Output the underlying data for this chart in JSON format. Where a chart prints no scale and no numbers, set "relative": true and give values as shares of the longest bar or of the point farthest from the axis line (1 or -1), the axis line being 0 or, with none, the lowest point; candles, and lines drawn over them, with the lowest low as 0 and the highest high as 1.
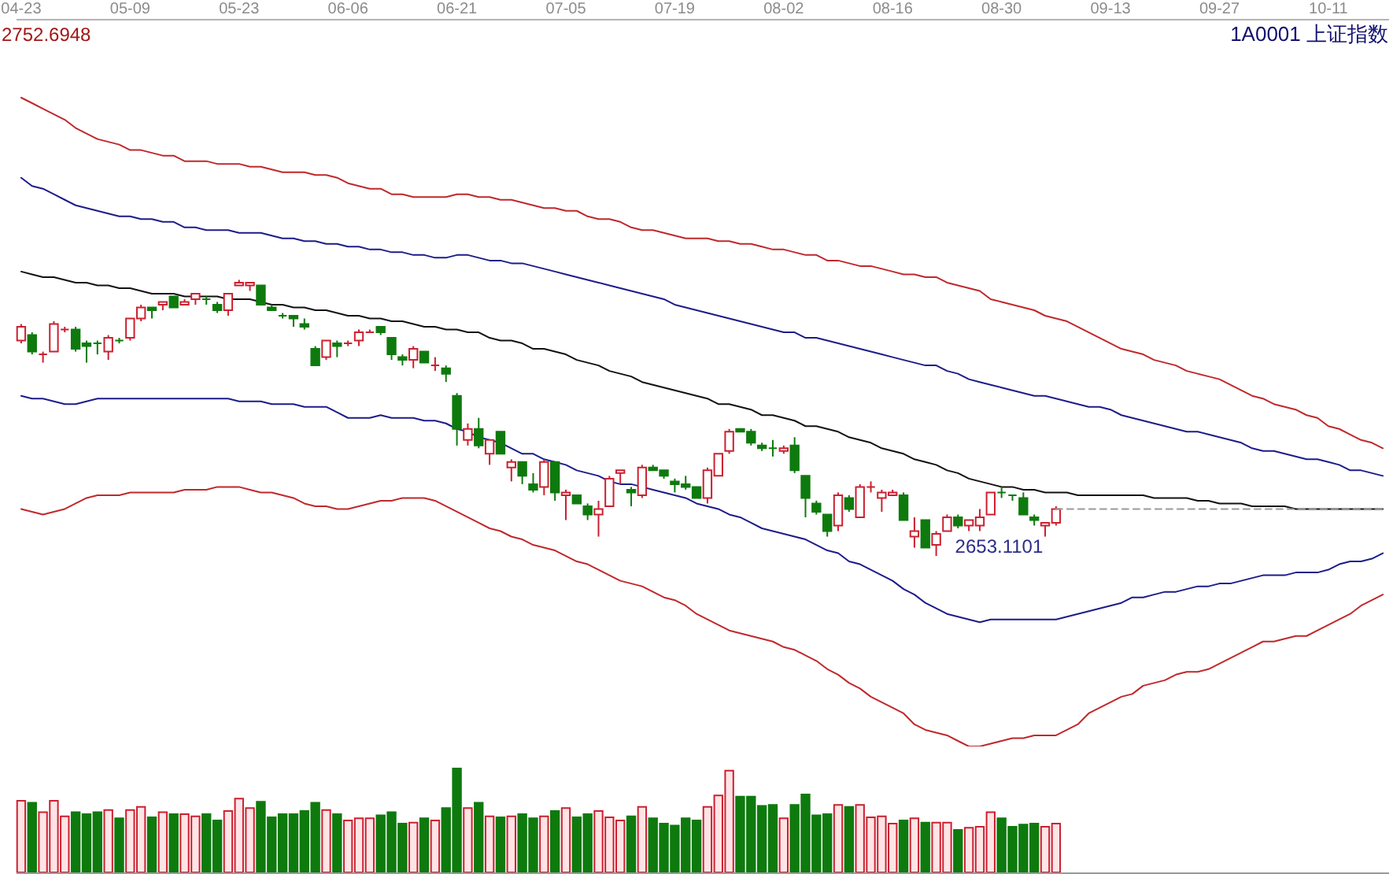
{
  "chart_data": [
    {
      "type": "candlestick",
      "title": "1A0001 上证指数",
      "relative": true,
      "categories": [
        "04-23",
        null,
        null,
        null,
        null,
        null,
        null,
        null,
        null,
        null,
        "05-09",
        null,
        null,
        null,
        null,
        null,
        null,
        null,
        null,
        null,
        "05-23",
        null,
        null,
        null,
        null,
        null,
        null,
        null,
        null,
        null,
        "06-06",
        null,
        null,
        null,
        null,
        null,
        null,
        null,
        null,
        null,
        "06-21",
        null,
        null,
        null,
        null,
        null,
        null,
        null,
        null,
        null,
        "07-05",
        null,
        null,
        null,
        null,
        null,
        null,
        null,
        null,
        null,
        "07-19",
        null,
        null,
        null,
        null,
        null,
        null,
        null,
        null,
        null,
        "08-02",
        null,
        null,
        null,
        null,
        null,
        null,
        null,
        null,
        null,
        "08-16",
        null,
        null,
        null,
        null,
        null,
        null,
        null,
        null,
        null,
        "08-30",
        null,
        null,
        null,
        null,
        null,
        null,
        null,
        null,
        null,
        "09-13",
        null,
        null,
        null,
        null,
        null,
        null,
        null,
        null,
        null,
        "09-27",
        null,
        null,
        null,
        null,
        null,
        null,
        null,
        null,
        null,
        "10-11",
        null,
        null,
        null,
        null,
        null
      ],
      "ohlc": [
        [
          0.78,
          0.84,
          0.77,
          0.83
        ],
        [
          0.8,
          0.81,
          0.73,
          0.74
        ],
        [
          0.73,
          0.74,
          0.7,
          0.73
        ],
        [
          0.74,
          0.85,
          0.74,
          0.84
        ],
        [
          0.82,
          0.83,
          0.81,
          0.82
        ],
        [
          0.82,
          0.83,
          0.74,
          0.75
        ],
        [
          0.77,
          0.78,
          0.7,
          0.76
        ],
        [
          0.77,
          0.78,
          0.73,
          0.77
        ],
        [
          0.74,
          0.8,
          0.71,
          0.79
        ],
        [
          0.78,
          0.79,
          0.77,
          0.78
        ],
        [
          0.79,
          0.86,
          0.78,
          0.86
        ],
        [
          0.86,
          0.91,
          0.85,
          0.9
        ],
        [
          0.9,
          0.9,
          0.86,
          0.89
        ],
        [
          0.91,
          0.92,
          0.89,
          0.92
        ],
        [
          0.94,
          0.94,
          0.9,
          0.9
        ],
        [
          0.91,
          0.93,
          0.91,
          0.92
        ],
        [
          0.93,
          0.95,
          0.91,
          0.95
        ],
        [
          0.93,
          0.94,
          0.91,
          0.93
        ],
        [
          0.91,
          0.92,
          0.88,
          0.89
        ],
        [
          0.89,
          0.95,
          0.87,
          0.95
        ],
        [
          0.98,
          1,
          0.98,
          0.99
        ],
        [
          0.98,
          0.99,
          0.96,
          0.99
        ],
        [
          0.98,
          0.98,
          0.91,
          0.91
        ],
        [
          0.9,
          0.91,
          0.89,
          0.89
        ],
        [
          0.87,
          0.88,
          0.86,
          0.87
        ],
        [
          0.87,
          0.87,
          0.83,
          0.86
        ],
        [
          0.84,
          0.86,
          0.82,
          0.83
        ],
        [
          0.75,
          0.76,
          0.69,
          0.69
        ],
        [
          0.72,
          0.78,
          0.71,
          0.78
        ],
        [
          0.77,
          0.78,
          0.72,
          0.76
        ],
        [
          0.77,
          0.78,
          0.76,
          0.77
        ],
        [
          0.78,
          0.82,
          0.76,
          0.81
        ],
        [
          0.81,
          0.82,
          0.81,
          0.81
        ],
        [
          0.83,
          0.83,
          0.8,
          0.81
        ],
        [
          0.79,
          0.79,
          0.71,
          0.73
        ],
        [
          0.72,
          0.73,
          0.69,
          0.71
        ],
        [
          0.71,
          0.76,
          0.68,
          0.75
        ],
        [
          0.74,
          0.74,
          0.7,
          0.7
        ],
        [
          0.69,
          0.72,
          0.67,
          0.69
        ],
        [
          0.68,
          0.69,
          0.63,
          0.66
        ],
        [
          0.58,
          0.59,
          0.4,
          0.46
        ],
        [
          0.42,
          0.48,
          0.4,
          0.46
        ],
        [
          0.46,
          0.5,
          0.39,
          0.4
        ],
        [
          0.37,
          0.42,
          0.33,
          0.42
        ],
        [
          0.45,
          0.45,
          0.37,
          0.37
        ],
        [
          0.32,
          0.35,
          0.27,
          0.34
        ],
        [
          0.34,
          0.34,
          0.26,
          0.29
        ],
        [
          0.26,
          0.3,
          0.23,
          0.24
        ],
        [
          0.25,
          0.35,
          0.22,
          0.34
        ],
        [
          0.34,
          0.34,
          0.2,
          0.23
        ],
        [
          0.22,
          0.24,
          0.13,
          0.23
        ],
        [
          0.22,
          0.22,
          0.19,
          0.19
        ],
        [
          0.18,
          0.19,
          0.13,
          0.15
        ],
        [
          0.15,
          0.2,
          0.07,
          0.17
        ],
        [
          0.18,
          0.29,
          0.18,
          0.28
        ],
        [
          0.3,
          0.31,
          0.26,
          0.31
        ],
        [
          0.24,
          0.25,
          0.18,
          0.23
        ],
        [
          0.22,
          0.33,
          0.21,
          0.32
        ],
        [
          0.32,
          0.33,
          0.31,
          0.31
        ],
        [
          0.31,
          0.31,
          0.28,
          0.29
        ],
        [
          0.27,
          0.28,
          0.23,
          0.26
        ],
        [
          0.26,
          0.29,
          0.24,
          0.25
        ],
        [
          0.25,
          0.25,
          0.21,
          0.21
        ],
        [
          0.21,
          0.32,
          0.19,
          0.31
        ],
        [
          0.29,
          0.37,
          0.29,
          0.37
        ],
        [
          0.38,
          0.46,
          0.37,
          0.45
        ],
        [
          0.46,
          0.46,
          0.45,
          0.45
        ],
        [
          0.45,
          0.46,
          0.4,
          0.41
        ],
        [
          0.4,
          0.41,
          0.38,
          0.39
        ],
        [
          0.39,
          0.42,
          0.36,
          0.39
        ],
        [
          0.38,
          0.4,
          0.37,
          0.39
        ],
        [
          0.4,
          0.43,
          0.3,
          0.31
        ],
        [
          0.29,
          0.29,
          0.14,
          0.21
        ],
        [
          0.19,
          0.2,
          0.15,
          0.16
        ],
        [
          0.15,
          0.15,
          0.07,
          0.09
        ],
        [
          0.11,
          0.23,
          0.09,
          0.22
        ],
        [
          0.21,
          0.22,
          0.16,
          0.17
        ],
        [
          0.14,
          0.26,
          0.14,
          0.25
        ],
        [
          0.25,
          0.27,
          0.23,
          0.25
        ],
        [
          0.21,
          0.24,
          0.16,
          0.23
        ],
        [
          0.22,
          0.24,
          0.22,
          0.23
        ],
        [
          0.22,
          0.23,
          0.13,
          0.13
        ],
        [
          0.07,
          0.14,
          0.03,
          0.09
        ],
        [
          0.13,
          0.13,
          0.03,
          0.03
        ],
        [
          0.04,
          0.09,
          0,
          0.08
        ],
        [
          0.09,
          0.15,
          0.09,
          0.14
        ],
        [
          0.14,
          0.15,
          0.1,
          0.11
        ],
        [
          0.11,
          0.13,
          0.09,
          0.13
        ],
        [
          0.11,
          0.17,
          0.09,
          0.14
        ],
        [
          0.15,
          0.23,
          0.15,
          0.23
        ],
        [
          0.23,
          0.25,
          0.21,
          0.23
        ],
        [
          0.22,
          0.22,
          0.2,
          0.22
        ],
        [
          0.21,
          0.23,
          0.15,
          0.15
        ],
        [
          0.14,
          0.15,
          0.11,
          0.13
        ],
        [
          0.11,
          0.12,
          0.07,
          0.12
        ],
        [
          0.12,
          0.18,
          0.11,
          0.17
        ],
        null,
        null,
        null,
        null,
        null,
        null,
        null,
        null,
        null,
        null,
        null,
        null,
        null,
        null,
        null,
        null,
        null,
        null,
        null,
        null,
        null,
        null,
        null,
        null,
        null,
        null,
        null,
        null,
        null,
        null
      ],
      "colors": [
        "#cc2030",
        "#0e7a0e",
        "#cc2030",
        "#cc2030",
        "#cc2030",
        "#0e7a0e",
        "#0e7a0e",
        "#0e7a0e",
        "#cc2030",
        "#0e7a0e",
        "#cc2030",
        "#cc2030",
        "#0e7a0e",
        "#cc2030",
        "#0e7a0e",
        "#cc2030",
        "#cc2030",
        "#0e7a0e",
        "#0e7a0e",
        "#cc2030",
        "#cc2030",
        "#cc2030",
        "#0e7a0e",
        "#0e7a0e",
        "#0e7a0e",
        "#0e7a0e",
        "#0e7a0e",
        "#0e7a0e",
        "#cc2030",
        "#0e7a0e",
        "#cc2030",
        "#cc2030",
        "#cc2030",
        "#0e7a0e",
        "#0e7a0e",
        "#0e7a0e",
        "#cc2030",
        "#0e7a0e",
        "#cc2030",
        "#0e7a0e",
        "#0e7a0e",
        "#cc2030",
        "#0e7a0e",
        "#cc2030",
        "#0e7a0e",
        "#cc2030",
        "#0e7a0e",
        "#0e7a0e",
        "#cc2030",
        "#0e7a0e",
        "#cc2030",
        "#0e7a0e",
        "#0e7a0e",
        "#cc2030",
        "#cc2030",
        "#cc2030",
        "#0e7a0e",
        "#cc2030",
        "#0e7a0e",
        "#0e7a0e",
        "#0e7a0e",
        "#0e7a0e",
        "#0e7a0e",
        "#cc2030",
        "#cc2030",
        "#cc2030",
        "#0e7a0e",
        "#0e7a0e",
        "#0e7a0e",
        "#0e7a0e",
        "#cc2030",
        "#0e7a0e",
        "#0e7a0e",
        "#0e7a0e",
        "#0e7a0e",
        "#cc2030",
        "#0e7a0e",
        "#cc2030",
        "#cc2030",
        "#cc2030",
        "#cc2030",
        "#0e7a0e",
        "#cc2030",
        "#0e7a0e",
        "#cc2030",
        "#cc2030",
        "#0e7a0e",
        "#cc2030",
        "#cc2030",
        "#cc2030",
        "#0e7a0e",
        "#0e7a0e",
        "#0e7a0e",
        "#0e7a0e",
        "#cc2030",
        "#cc2030",
        null,
        null,
        null,
        null,
        null,
        null,
        null,
        null,
        null,
        null,
        null,
        null,
        null,
        null,
        null,
        null,
        null,
        null,
        null,
        null,
        null,
        null,
        null,
        null,
        null,
        null,
        null,
        null,
        null,
        null
      ],
      "series": [
        {
          "type": "line",
          "color": "#c0282c",
          "values": [
            1.66,
            1.64,
            1.62,
            1.6,
            1.58,
            1.55,
            1.53,
            1.51,
            1.5,
            1.49,
            1.47,
            1.47,
            1.46,
            1.45,
            1.45,
            1.43,
            1.43,
            1.43,
            1.42,
            1.42,
            1.42,
            1.41,
            1.41,
            1.4,
            1.39,
            1.39,
            1.39,
            1.38,
            1.38,
            1.37,
            1.35,
            1.34,
            1.33,
            1.33,
            1.31,
            1.31,
            1.3,
            1.3,
            1.3,
            1.3,
            1.31,
            1.31,
            1.3,
            1.3,
            1.29,
            1.29,
            1.28,
            1.27,
            1.26,
            1.26,
            1.25,
            1.25,
            1.23,
            1.22,
            1.22,
            1.21,
            1.19,
            1.18,
            1.18,
            1.17,
            1.16,
            1.15,
            1.15,
            1.15,
            1.14,
            1.14,
            1.13,
            1.13,
            1.12,
            1.11,
            1.11,
            1.1,
            1.09,
            1.09,
            1.07,
            1.07,
            1.06,
            1.05,
            1.05,
            1.04,
            1.03,
            1.02,
            1.02,
            1.01,
            1.01,
            0.99,
            0.98,
            0.97,
            0.96,
            0.93,
            0.92,
            0.91,
            0.9,
            0.89,
            0.87,
            0.86,
            0.85,
            0.83,
            0.81,
            0.79,
            0.77,
            0.75,
            0.74,
            0.73,
            0.71,
            0.7,
            0.69,
            0.67,
            0.66,
            0.65,
            0.64,
            0.62,
            0.6,
            0.58,
            0.57,
            0.55,
            0.54,
            0.53,
            0.51,
            0.5,
            0.47,
            0.46,
            0.44,
            0.42,
            0.41,
            0.39
          ]
        },
        {
          "type": "line",
          "color": "#1c1c8a",
          "values": [
            1.37,
            1.34,
            1.33,
            1.31,
            1.29,
            1.27,
            1.26,
            1.25,
            1.24,
            1.23,
            1.23,
            1.22,
            1.22,
            1.21,
            1.21,
            1.19,
            1.19,
            1.18,
            1.18,
            1.18,
            1.17,
            1.17,
            1.17,
            1.16,
            1.15,
            1.15,
            1.14,
            1.14,
            1.13,
            1.13,
            1.12,
            1.12,
            1.11,
            1.11,
            1.1,
            1.1,
            1.09,
            1.09,
            1.08,
            1.08,
            1.09,
            1.09,
            1.08,
            1.07,
            1.07,
            1.06,
            1.06,
            1.05,
            1.04,
            1.03,
            1.02,
            1.01,
            1.0,
            0.99,
            0.98,
            0.97,
            0.96,
            0.95,
            0.94,
            0.93,
            0.91,
            0.9,
            0.89,
            0.88,
            0.87,
            0.86,
            0.85,
            0.84,
            0.83,
            0.82,
            0.81,
            0.81,
            0.79,
            0.79,
            0.78,
            0.77,
            0.76,
            0.75,
            0.74,
            0.73,
            0.72,
            0.71,
            0.7,
            0.69,
            0.69,
            0.67,
            0.66,
            0.64,
            0.63,
            0.62,
            0.61,
            0.6,
            0.59,
            0.58,
            0.58,
            0.57,
            0.56,
            0.55,
            0.54,
            0.54,
            0.53,
            0.51,
            0.5,
            0.49,
            0.48,
            0.47,
            0.46,
            0.45,
            0.45,
            0.44,
            0.43,
            0.42,
            0.41,
            0.39,
            0.38,
            0.38,
            0.37,
            0.36,
            0.35,
            0.35,
            0.34,
            0.33,
            0.31,
            0.31,
            0.3,
            0.29
          ]
        },
        {
          "type": "line",
          "color": "#111111",
          "values": [
            1.03,
            1.02,
            1.01,
            1.01,
            1.0,
            0.99,
            0.99,
            0.98,
            0.98,
            0.97,
            0.97,
            0.96,
            0.95,
            0.95,
            0.95,
            0.94,
            0.94,
            0.94,
            0.94,
            0.93,
            0.93,
            0.93,
            0.92,
            0.91,
            0.91,
            0.9,
            0.9,
            0.89,
            0.89,
            0.88,
            0.87,
            0.87,
            0.86,
            0.86,
            0.85,
            0.85,
            0.84,
            0.83,
            0.83,
            0.82,
            0.82,
            0.81,
            0.81,
            0.79,
            0.78,
            0.78,
            0.77,
            0.75,
            0.75,
            0.74,
            0.73,
            0.71,
            0.7,
            0.69,
            0.67,
            0.66,
            0.65,
            0.63,
            0.62,
            0.61,
            0.6,
            0.59,
            0.58,
            0.57,
            0.55,
            0.55,
            0.54,
            0.53,
            0.51,
            0.51,
            0.5,
            0.49,
            0.47,
            0.47,
            0.46,
            0.45,
            0.43,
            0.42,
            0.41,
            0.39,
            0.38,
            0.37,
            0.35,
            0.34,
            0.33,
            0.31,
            0.3,
            0.28,
            0.27,
            0.26,
            0.25,
            0.25,
            0.24,
            0.24,
            0.23,
            0.23,
            0.23,
            0.22,
            0.22,
            0.22,
            0.22,
            0.22,
            0.22,
            0.22,
            0.21,
            0.21,
            0.21,
            0.21,
            0.2,
            0.2,
            0.19,
            0.19,
            0.19,
            0.18,
            0.18,
            0.18,
            0.18,
            0.17,
            0.17,
            0.17,
            0.17,
            0.17,
            0.17,
            0.17,
            0.17,
            0.17
          ]
        },
        {
          "type": "line",
          "color": "#1c1c8a",
          "values": [
            0.58,
            0.57,
            0.57,
            0.56,
            0.55,
            0.55,
            0.56,
            0.57,
            0.57,
            0.57,
            0.57,
            0.57,
            0.57,
            0.57,
            0.57,
            0.57,
            0.57,
            0.57,
            0.57,
            0.57,
            0.56,
            0.56,
            0.56,
            0.55,
            0.55,
            0.55,
            0.54,
            0.54,
            0.54,
            0.52,
            0.5,
            0.5,
            0.5,
            0.51,
            0.5,
            0.5,
            0.5,
            0.49,
            0.49,
            0.48,
            0.46,
            0.45,
            0.43,
            0.42,
            0.41,
            0.39,
            0.37,
            0.37,
            0.35,
            0.34,
            0.33,
            0.31,
            0.3,
            0.29,
            0.27,
            0.26,
            0.26,
            0.25,
            0.24,
            0.23,
            0.22,
            0.21,
            0.19,
            0.18,
            0.17,
            0.15,
            0.14,
            0.12,
            0.1,
            0.09,
            0.08,
            0.07,
            0.06,
            0.04,
            0.02,
            0.01,
            -0.02,
            -0.03,
            -0.05,
            -0.07,
            -0.09,
            -0.12,
            -0.14,
            -0.17,
            -0.19,
            -0.21,
            -0.22,
            -0.23,
            -0.24,
            -0.23,
            -0.23,
            -0.23,
            -0.23,
            -0.23,
            -0.23,
            -0.23,
            -0.22,
            -0.21,
            -0.2,
            -0.19,
            -0.18,
            -0.17,
            -0.15,
            -0.15,
            -0.14,
            -0.13,
            -0.13,
            -0.12,
            -0.11,
            -0.11,
            -0.1,
            -0.1,
            -0.09,
            -0.08,
            -0.07,
            -0.07,
            -0.07,
            -0.06,
            -0.06,
            -0.06,
            -0.05,
            -0.03,
            -0.02,
            -0.02,
            -0.01,
            0.01
          ]
        },
        {
          "type": "line",
          "color": "#c0282c",
          "values": [
            0.17,
            0.16,
            0.15,
            0.16,
            0.17,
            0.19,
            0.21,
            0.22,
            0.22,
            0.22,
            0.23,
            0.23,
            0.23,
            0.23,
            0.23,
            0.24,
            0.24,
            0.24,
            0.25,
            0.25,
            0.25,
            0.24,
            0.23,
            0.23,
            0.22,
            0.21,
            0.19,
            0.18,
            0.18,
            0.17,
            0.17,
            0.18,
            0.19,
            0.2,
            0.2,
            0.21,
            0.21,
            0.21,
            0.2,
            0.18,
            0.16,
            0.14,
            0.12,
            0.1,
            0.09,
            0.07,
            0.06,
            0.04,
            0.03,
            0.02,
            0.0,
            -0.02,
            -0.03,
            -0.05,
            -0.07,
            -0.09,
            -0.1,
            -0.11,
            -0.13,
            -0.15,
            -0.16,
            -0.18,
            -0.21,
            -0.23,
            -0.25,
            -0.27,
            -0.28,
            -0.29,
            -0.3,
            -0.31,
            -0.33,
            -0.34,
            -0.36,
            -0.38,
            -0.41,
            -0.43,
            -0.46,
            -0.48,
            -0.51,
            -0.53,
            -0.55,
            -0.57,
            -0.61,
            -0.63,
            -0.64,
            -0.65,
            -0.67,
            -0.69,
            -0.69,
            -0.68,
            -0.67,
            -0.66,
            -0.66,
            -0.65,
            -0.65,
            -0.65,
            -0.63,
            -0.61,
            -0.57,
            -0.55,
            -0.53,
            -0.51,
            -0.5,
            -0.47,
            -0.46,
            -0.45,
            -0.43,
            -0.42,
            -0.42,
            -0.41,
            -0.39,
            -0.37,
            -0.35,
            -0.33,
            -0.31,
            -0.31,
            -0.3,
            -0.29,
            -0.29,
            -0.27,
            -0.25,
            -0.23,
            -0.21,
            -0.18,
            -0.16,
            -0.14
          ]
        }
      ],
      "ref_lines": [
        {
          "axis": "y",
          "value": 0.17,
          "line_style": "dashed",
          "color": "#9a9a9a"
        }
      ],
      "annotations": [
        "2752.6948",
        "2653.1101"
      ]
    },
    {
      "type": "bar",
      "relative": true,
      "categories": [
        null,
        null,
        null,
        null,
        null,
        null,
        null,
        null,
        null,
        null,
        null,
        null,
        null,
        null,
        null,
        null,
        null,
        null,
        null,
        null,
        null,
        null,
        null,
        null,
        null,
        null,
        null,
        null,
        null,
        null,
        null,
        null,
        null,
        null,
        null,
        null,
        null,
        null,
        null,
        null,
        null,
        null,
        null,
        null,
        null,
        null,
        null,
        null,
        null,
        null,
        null,
        null,
        null,
        null,
        null,
        null,
        null,
        null,
        null,
        null,
        null,
        null,
        null,
        null,
        null,
        null,
        null,
        null,
        null,
        null,
        null,
        null,
        null,
        null,
        null,
        null,
        null,
        null,
        null,
        null,
        null,
        null,
        null,
        null,
        null,
        null,
        null,
        null,
        null,
        null,
        null,
        null,
        null,
        null,
        null,
        null,
        null,
        null,
        null,
        null,
        null,
        null,
        null,
        null,
        null,
        null,
        null,
        null,
        null,
        null,
        null,
        null,
        null,
        null,
        null,
        null,
        null,
        null,
        null,
        null,
        null,
        null,
        null,
        null,
        null,
        null
      ],
      "values": [
        0.69,
        0.67,
        0.58,
        0.69,
        0.54,
        0.58,
        0.56,
        0.58,
        0.6,
        0.52,
        0.6,
        0.63,
        0.53,
        0.58,
        0.56,
        0.56,
        0.54,
        0.56,
        0.5,
        0.59,
        0.71,
        0.62,
        0.68,
        0.53,
        0.56,
        0.56,
        0.59,
        0.67,
        0.6,
        0.56,
        0.5,
        0.52,
        0.52,
        0.55,
        0.58,
        0.47,
        0.48,
        0.52,
        0.5,
        0.62,
        1,
        0.62,
        0.67,
        0.54,
        0.53,
        0.54,
        0.56,
        0.52,
        0.54,
        0.59,
        0.62,
        0.53,
        0.56,
        0.59,
        0.53,
        0.5,
        0.54,
        0.63,
        0.52,
        0.47,
        0.45,
        0.52,
        0.5,
        0.63,
        0.74,
        0.98,
        0.73,
        0.73,
        0.64,
        0.65,
        0.52,
        0.65,
        0.75,
        0.55,
        0.56,
        0.65,
        0.63,
        0.65,
        0.53,
        0.54,
        0.47,
        0.5,
        0.52,
        0.48,
        0.48,
        0.48,
        0.41,
        0.43,
        0.44,
        0.58,
        0.52,
        0.44,
        0.46,
        0.47,
        0.44,
        0.47,
        null,
        null,
        null,
        null,
        null,
        null,
        null,
        null,
        null,
        null,
        null,
        null,
        null,
        null,
        null,
        null,
        null,
        null,
        null,
        null,
        null,
        null,
        null,
        null,
        null,
        null,
        null,
        null,
        null,
        null
      ],
      "colors": [
        "#cc2030",
        "#0e7a0e",
        "#cc2030",
        "#cc2030",
        "#cc2030",
        "#0e7a0e",
        "#0e7a0e",
        "#0e7a0e",
        "#cc2030",
        "#0e7a0e",
        "#cc2030",
        "#cc2030",
        "#0e7a0e",
        "#cc2030",
        "#0e7a0e",
        "#cc2030",
        "#cc2030",
        "#0e7a0e",
        "#0e7a0e",
        "#cc2030",
        "#cc2030",
        "#cc2030",
        "#0e7a0e",
        "#0e7a0e",
        "#0e7a0e",
        "#0e7a0e",
        "#0e7a0e",
        "#0e7a0e",
        "#cc2030",
        "#0e7a0e",
        "#cc2030",
        "#cc2030",
        "#cc2030",
        "#0e7a0e",
        "#0e7a0e",
        "#0e7a0e",
        "#cc2030",
        "#0e7a0e",
        "#cc2030",
        "#0e7a0e",
        "#0e7a0e",
        "#cc2030",
        "#0e7a0e",
        "#cc2030",
        "#0e7a0e",
        "#cc2030",
        "#0e7a0e",
        "#0e7a0e",
        "#cc2030",
        "#0e7a0e",
        "#cc2030",
        "#0e7a0e",
        "#0e7a0e",
        "#cc2030",
        "#cc2030",
        "#cc2030",
        "#0e7a0e",
        "#cc2030",
        "#0e7a0e",
        "#0e7a0e",
        "#0e7a0e",
        "#0e7a0e",
        "#0e7a0e",
        "#cc2030",
        "#cc2030",
        "#cc2030",
        "#0e7a0e",
        "#0e7a0e",
        "#0e7a0e",
        "#0e7a0e",
        "#cc2030",
        "#0e7a0e",
        "#0e7a0e",
        "#0e7a0e",
        "#0e7a0e",
        "#cc2030",
        "#0e7a0e",
        "#cc2030",
        "#cc2030",
        "#cc2030",
        "#cc2030",
        "#0e7a0e",
        "#cc2030",
        "#0e7a0e",
        "#cc2030",
        "#cc2030",
        "#0e7a0e",
        "#cc2030",
        "#cc2030",
        "#cc2030",
        "#0e7a0e",
        "#0e7a0e",
        "#0e7a0e",
        "#0e7a0e",
        "#cc2030",
        "#cc2030",
        null,
        null,
        null,
        null,
        null,
        null,
        null,
        null,
        null,
        null,
        null,
        null,
        null,
        null,
        null,
        null,
        null,
        null,
        null,
        null,
        null,
        null,
        null,
        null,
        null,
        null,
        null,
        null,
        null,
        null
      ]
    }
  ]
}
